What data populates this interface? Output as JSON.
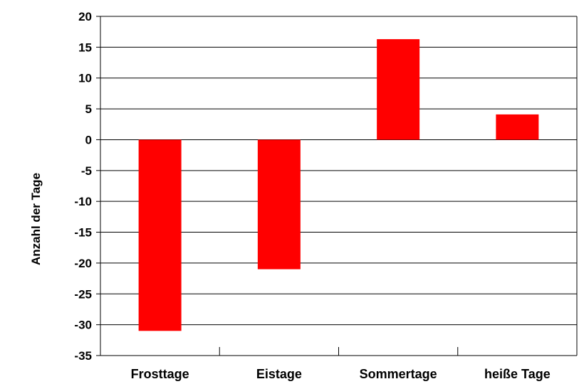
{
  "chart_data": {
    "type": "bar",
    "categories": [
      "Frosttage",
      "Eistage",
      "Sommertage",
      "heiße Tage"
    ],
    "values": [
      -31,
      -21,
      16.3,
      4.1
    ],
    "title": "",
    "xlabel": "",
    "ylabel": "Anzahl der Tage",
    "ylim": [
      -35,
      20
    ],
    "yticks": [
      20,
      15,
      10,
      5,
      0,
      -5,
      -10,
      -15,
      -20,
      -25,
      -30,
      -35
    ],
    "grid": true,
    "legend": "none",
    "bar_color": "#ff0000"
  }
}
